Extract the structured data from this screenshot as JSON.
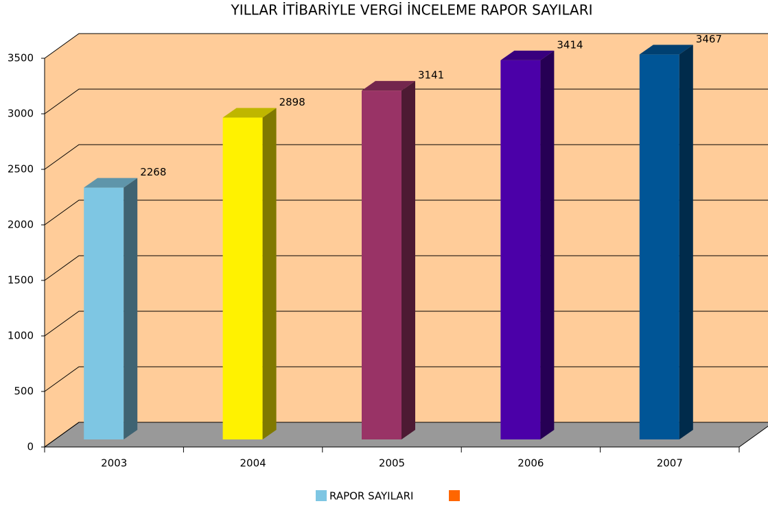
{
  "chart_data": {
    "type": "bar",
    "title": "YILLAR İTİBARİYLE VERGİ İNCELEME RAPOR SAYILARI",
    "categories": [
      "2003",
      "2004",
      "2005",
      "2006",
      "2007"
    ],
    "series": [
      {
        "name": "RAPOR SAYILARI",
        "color": "#7ec6e3",
        "values": [
          2268,
          2898,
          3141,
          3414,
          3467
        ],
        "colors": [
          "#7ec6e3",
          "#fff200",
          "#993366",
          "#4b00a8",
          "#005596"
        ]
      }
    ],
    "ylim": [
      0,
      3500
    ],
    "yticks": [
      0,
      500,
      1000,
      1500,
      2000,
      2500,
      3000,
      3500
    ],
    "grid": true
  }
}
